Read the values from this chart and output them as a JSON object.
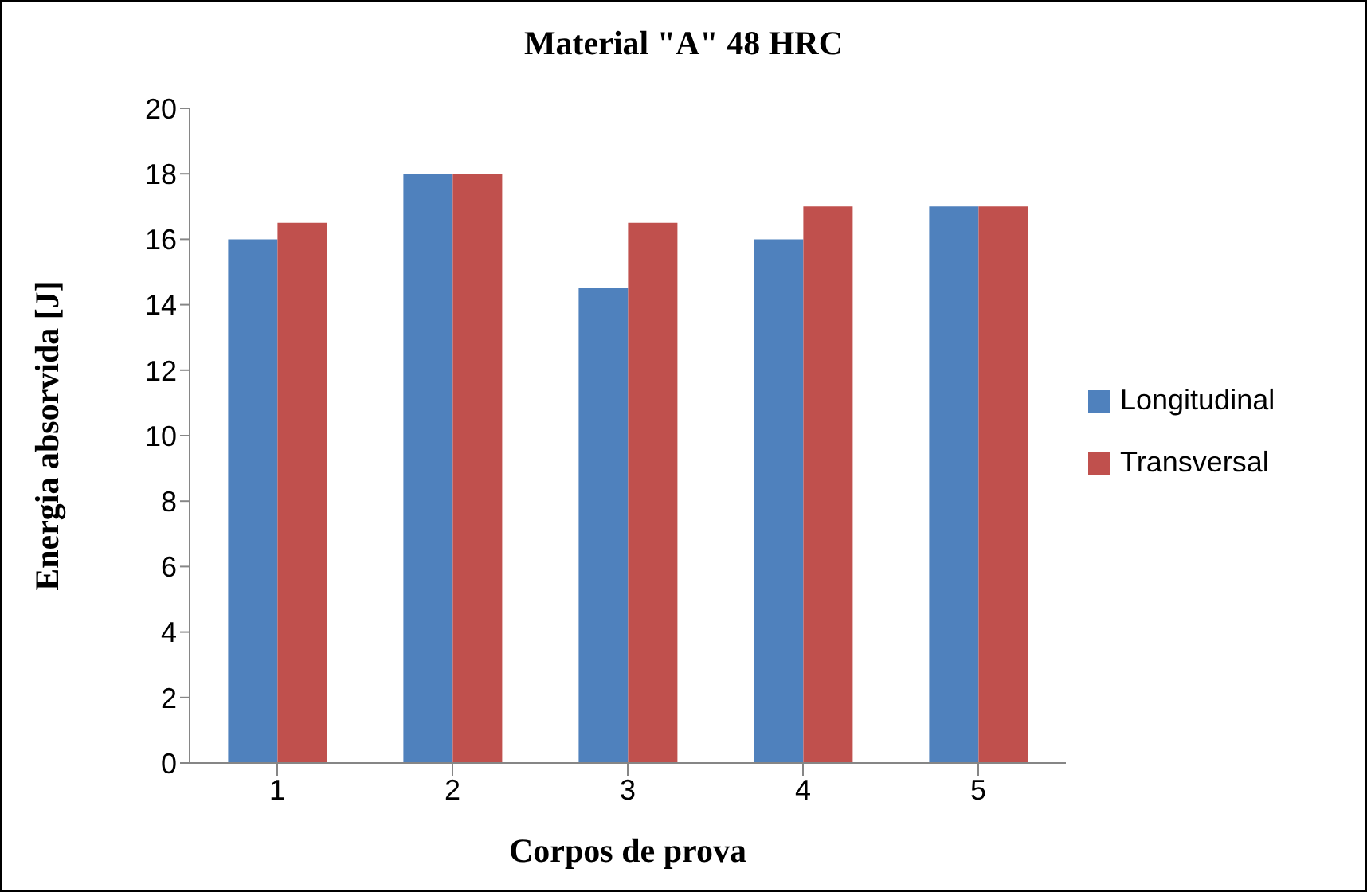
{
  "chart_data": {
    "type": "bar",
    "title": "Material \"A\" 48 HRC",
    "xlabel": "Corpos de prova",
    "ylabel": "Energia absorvida [J]",
    "categories": [
      "1",
      "2",
      "3",
      "4",
      "5"
    ],
    "series": [
      {
        "name": "Longitudinal",
        "color": "#4f81bd",
        "values": [
          16,
          18,
          14.5,
          16,
          17
        ]
      },
      {
        "name": "Transversal",
        "color": "#c0504d",
        "values": [
          16.5,
          18,
          16.5,
          17,
          17
        ]
      }
    ],
    "ylim": [
      0,
      20
    ],
    "yticks": [
      0,
      2,
      4,
      6,
      8,
      10,
      12,
      14,
      16,
      18,
      20
    ],
    "grid": false,
    "legend": "right"
  }
}
